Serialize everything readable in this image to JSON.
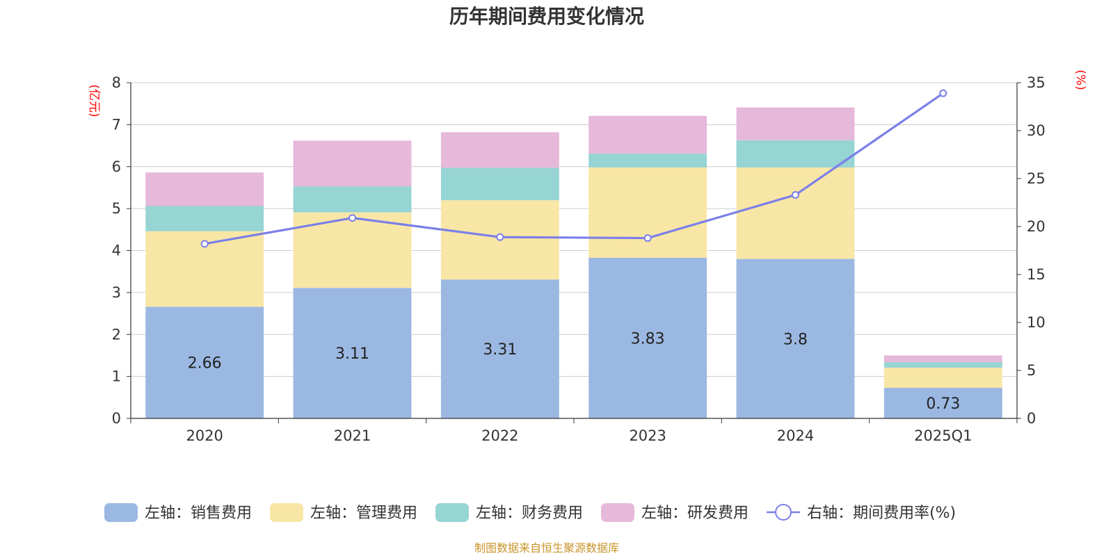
{
  "chart_data": {
    "type": "bar",
    "stacked": true,
    "title": "历年期间费用变化情况",
    "categories": [
      "2020",
      "2021",
      "2022",
      "2023",
      "2024",
      "2025Q1"
    ],
    "left_axis": {
      "unit": "(亿元)",
      "ylim": [
        0,
        8
      ],
      "ticks": [
        "0",
        "1",
        "2",
        "3",
        "4",
        "5",
        "6",
        "7",
        "8"
      ]
    },
    "right_axis": {
      "unit": "(%)",
      "ylim": [
        0,
        35
      ],
      "ticks": [
        "0",
        "5",
        "10",
        "15",
        "20",
        "25",
        "30",
        "35"
      ]
    },
    "series": [
      {
        "name": "左轴：销售费用",
        "axis": "left",
        "color": "#9bb8e2",
        "values": [
          2.66,
          3.11,
          3.31,
          3.83,
          3.8,
          0.73
        ],
        "labels": [
          "2.66",
          "3.11",
          "3.31",
          "3.83",
          "3.8",
          "0.73"
        ]
      },
      {
        "name": "左轴：管理费用",
        "axis": "left",
        "color": "#f8e6a6",
        "values": [
          1.8,
          1.8,
          1.89,
          2.15,
          2.18,
          0.48
        ]
      },
      {
        "name": "左轴：财务费用",
        "axis": "left",
        "color": "#97d4d4",
        "values": [
          0.6,
          0.62,
          0.77,
          0.33,
          0.65,
          0.13
        ]
      },
      {
        "name": "左轴：研发费用",
        "axis": "left",
        "color": "#e6b8d9",
        "values": [
          0.8,
          1.09,
          0.85,
          0.9,
          0.78,
          0.16
        ]
      },
      {
        "name": "右轴：期间费用率(%)",
        "axis": "right",
        "type": "line",
        "color": "#7b7fe8",
        "values": [
          18.2,
          20.9,
          18.9,
          18.8,
          23.3,
          33.9
        ]
      }
    ],
    "legend_position": "bottom",
    "grid": true
  },
  "source": "制图数据来自恒生聚源数据库"
}
